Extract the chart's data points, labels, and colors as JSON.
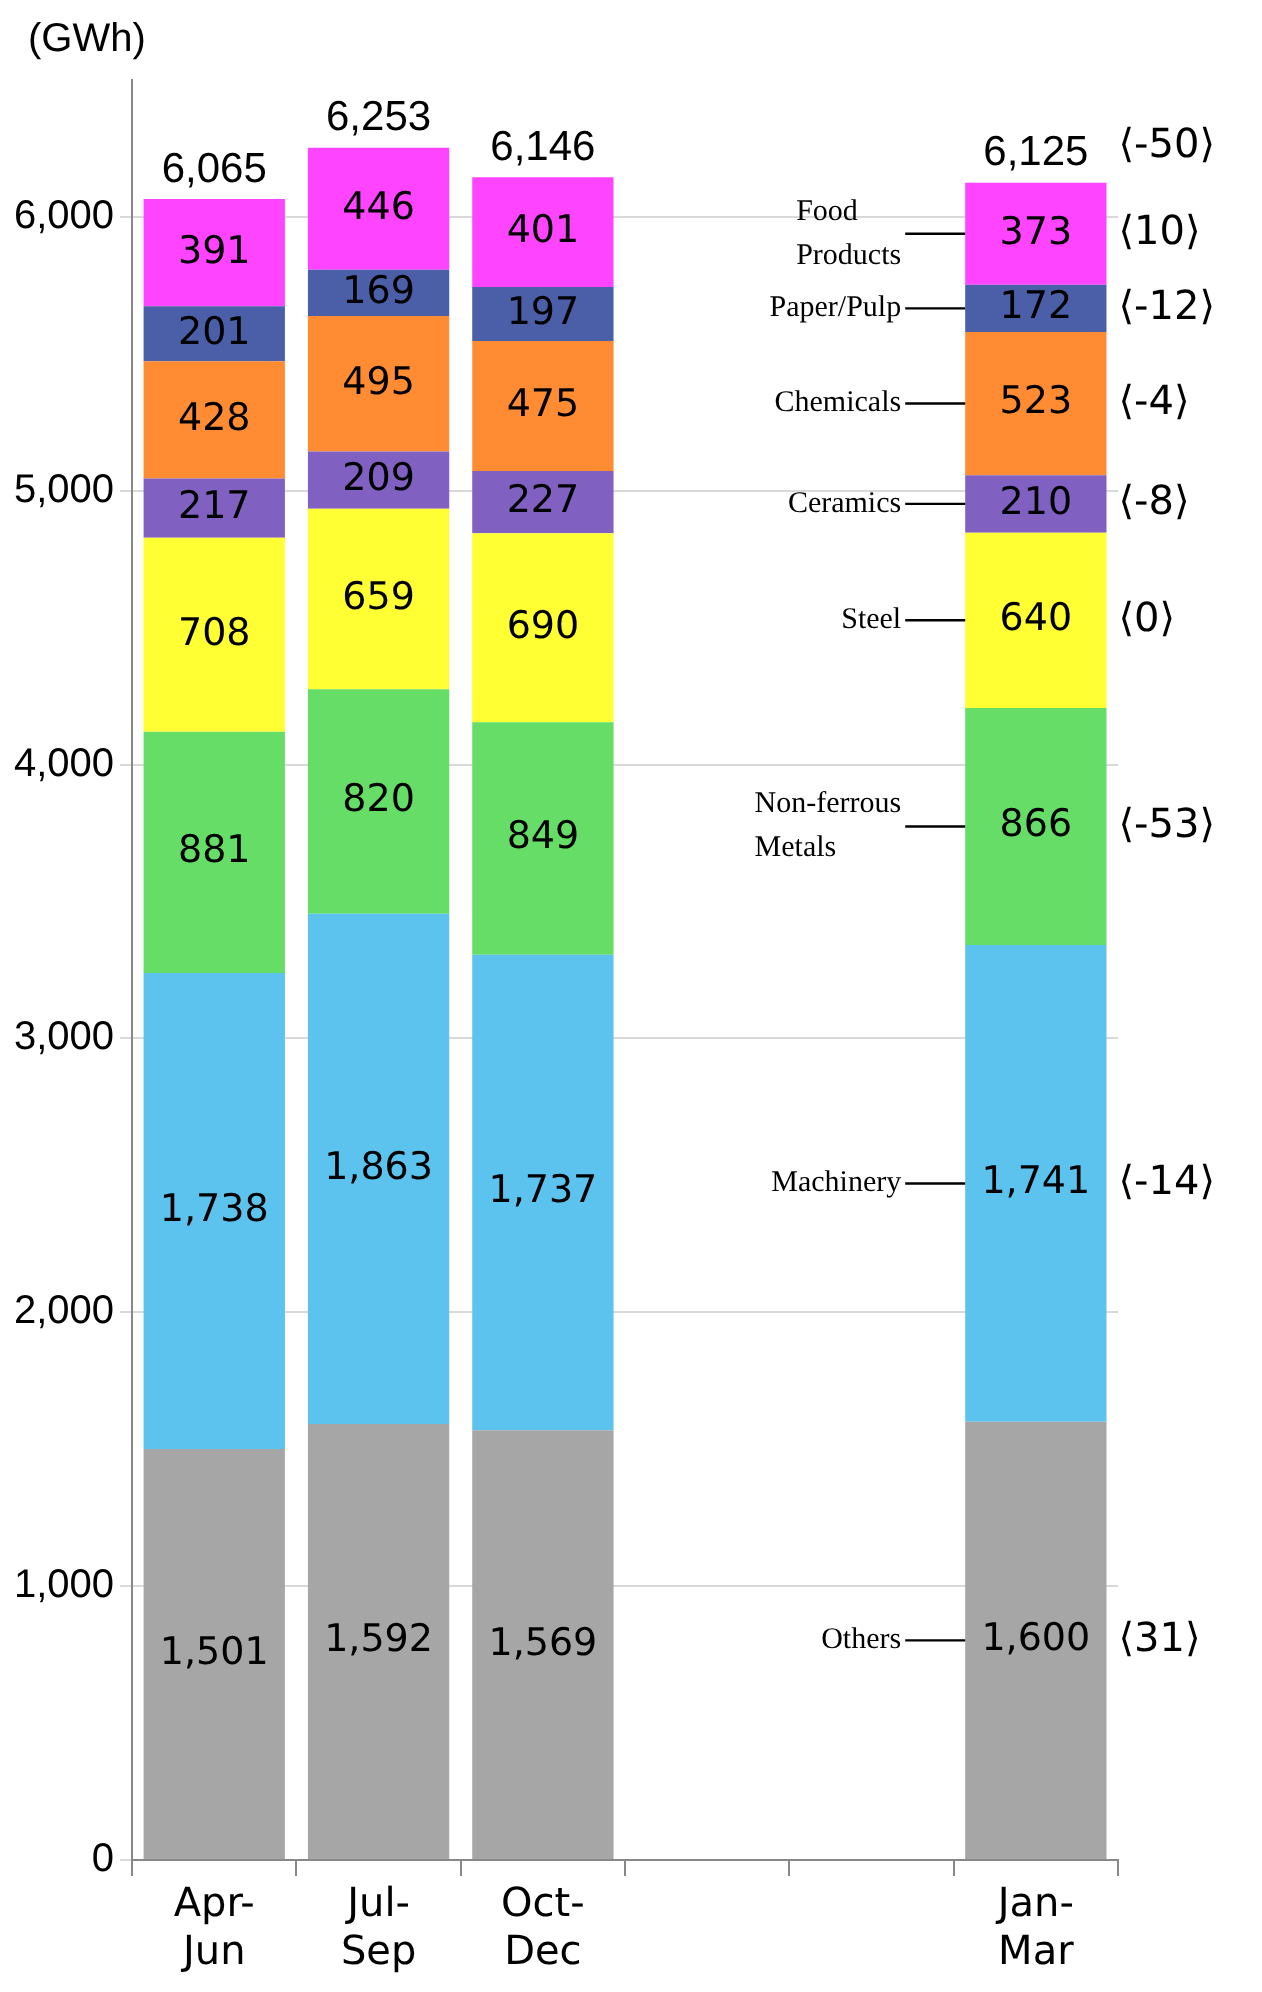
{
  "chart_data": {
    "type": "bar",
    "stacked": true,
    "ylabel": "(GWh)",
    "categories": [
      "Apr-Jun",
      "Jul-Sep",
      "Oct-Dec",
      null,
      null,
      "Jan-Mar"
    ],
    "series": [
      {
        "name": "Others",
        "color": "#a6a6a6",
        "values": [
          1501,
          1592,
          1569,
          null,
          null,
          1600
        ],
        "value_labels": [
          "1,501",
          "1,592",
          "1,569",
          null,
          null,
          "1,600"
        ]
      },
      {
        "name": "Machinery",
        "color": "#5cc3ef",
        "values": [
          1738,
          1863,
          1737,
          null,
          null,
          1741
        ],
        "value_labels": [
          "1,738",
          "1,863",
          "1,737",
          null,
          null,
          "1,741"
        ]
      },
      {
        "name": "Non-ferrous Metals",
        "color": "#66dd66",
        "values": [
          881,
          820,
          849,
          null,
          null,
          866
        ]
      },
      {
        "name": "Steel",
        "color": "#ffff33",
        "values": [
          708,
          659,
          690,
          null,
          null,
          640
        ]
      },
      {
        "name": "Ceramics",
        "color": "#8060c0",
        "values": [
          217,
          209,
          227,
          null,
          null,
          210
        ]
      },
      {
        "name": "Chemicals",
        "color": "#ff8c33",
        "values": [
          428,
          495,
          475,
          null,
          null,
          523
        ]
      },
      {
        "name": "Paper/Pulp",
        "color": "#4a5fa8",
        "values": [
          201,
          169,
          197,
          null,
          null,
          172
        ]
      },
      {
        "name": "Food Products",
        "color": "#ff44ff",
        "values": [
          391,
          446,
          401,
          null,
          null,
          373
        ]
      }
    ],
    "totals": [
      "6,065",
      "6,253",
      "6,146",
      null,
      null,
      "6,125"
    ],
    "data_labels": true,
    "ylim": [
      0,
      6500
    ],
    "yticks": [
      0,
      {
        "value": 1000,
        "label": "1,000"
      },
      {
        "value": 2000,
        "label": "2,000"
      },
      {
        "value": 3000,
        "label": "3,000"
      },
      {
        "value": 4000,
        "label": "4,000"
      },
      {
        "value": 5000,
        "label": "5,000"
      },
      {
        "value": 6000,
        "label": "6,000"
      }
    ],
    "grid": "y",
    "annotations": [
      "⟨-50⟩",
      "⟨10⟩",
      "⟨-12⟩",
      "⟨-4⟩",
      "⟨-8⟩",
      "⟨0⟩",
      "⟨-53⟩",
      "⟨-14⟩",
      "⟨31⟩"
    ]
  }
}
